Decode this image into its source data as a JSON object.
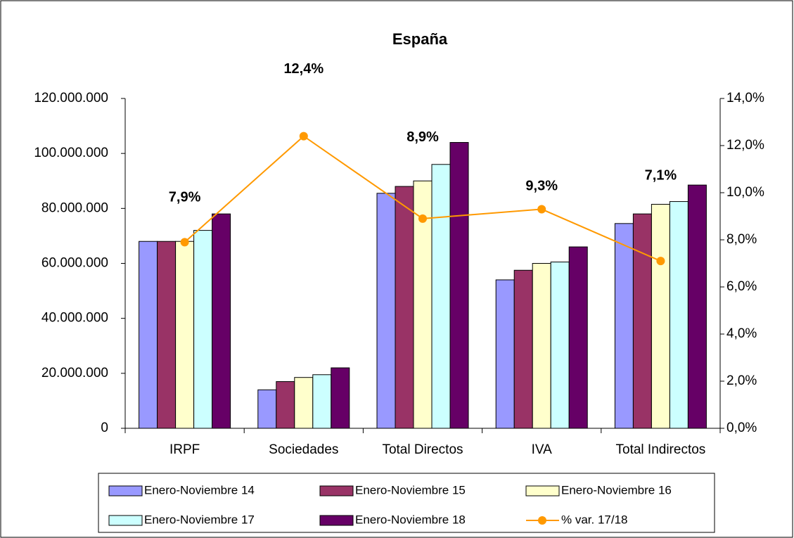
{
  "chart_data": {
    "type": "bar",
    "title": "España",
    "categories": [
      "IRPF",
      "Sociedades",
      "Total Directos",
      "IVA",
      "Total Indirectos"
    ],
    "series": [
      {
        "name": "Enero-Noviembre 14",
        "color": "#9999ff",
        "values": [
          68000000,
          14000000,
          85500000,
          54000000,
          74500000
        ]
      },
      {
        "name": "Enero-Noviembre 15",
        "color": "#993366",
        "values": [
          68000000,
          17000000,
          88000000,
          57500000,
          78000000
        ]
      },
      {
        "name": "Enero-Noviembre 16",
        "color": "#ffffcc",
        "values": [
          68000000,
          18500000,
          90000000,
          60000000,
          81500000
        ]
      },
      {
        "name": "Enero-Noviembre 17",
        "color": "#ccffff",
        "values": [
          72000000,
          19500000,
          96000000,
          60500000,
          82500000
        ]
      },
      {
        "name": "Enero-Noviembre 18",
        "color": "#660066",
        "values": [
          78000000,
          22000000,
          104000000,
          66000000,
          88500000
        ]
      },
      {
        "name": "% var. 17/18",
        "color": "#ff9900",
        "type": "line",
        "axis": "y2",
        "values": [
          7.9,
          12.4,
          8.9,
          9.3,
          7.1
        ],
        "value_labels": [
          "7,9%",
          "12,4%",
          "8,9%",
          "9,3%",
          "7,1%"
        ]
      }
    ],
    "ylim": [
      0,
      120000000
    ],
    "yticks": [
      0,
      {
        "value": 20000000,
        "label": "20.000.000"
      },
      {
        "value": 40000000,
        "label": "40.000.000"
      },
      {
        "value": 60000000,
        "label": "60.000.000"
      },
      {
        "value": 80000000,
        "label": "80.000.000"
      },
      {
        "value": 100000000,
        "label": "100.000.000"
      },
      {
        "value": 120000000,
        "label": "120.000.000"
      }
    ],
    "y2lim": [
      0,
      14
    ],
    "y2ticks": [
      {
        "value": 0,
        "label": "0,0%"
      },
      {
        "value": 2,
        "label": "2,0%"
      },
      {
        "value": 4,
        "label": "4,0%"
      },
      {
        "value": 6,
        "label": "6,0%"
      },
      {
        "value": 8,
        "label": "8,0%"
      },
      {
        "value": 10,
        "label": "10,0%"
      },
      {
        "value": 12,
        "label": "12,0%"
      },
      {
        "value": 14,
        "label": "14,0%"
      }
    ],
    "grid": false,
    "legend": "bottom"
  }
}
